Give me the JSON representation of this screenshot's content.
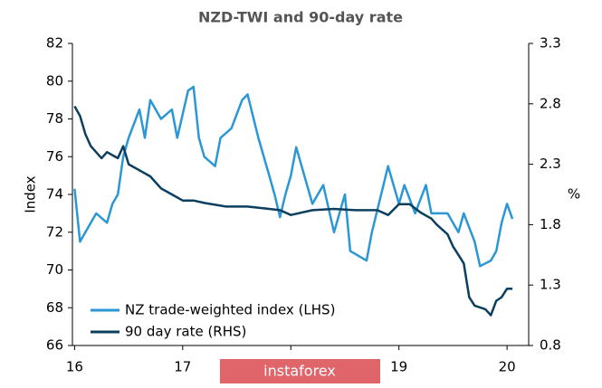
{
  "chart_data": {
    "type": "line",
    "title": "NZD-TWI and 90-day rate",
    "y_label": "Index",
    "y2_label": "%",
    "xlim": [
      15.98,
      20.2
    ],
    "xticks": [
      16,
      17,
      18,
      19,
      20
    ],
    "ylim": [
      66,
      82
    ],
    "yticks": [
      66,
      68,
      70,
      72,
      74,
      76,
      78,
      80,
      82
    ],
    "y2lim": [
      0.8,
      3.3
    ],
    "y2ticks": [
      0.8,
      1.3,
      1.8,
      2.3,
      2.8,
      3.3
    ],
    "legend": "lower left",
    "watermark": "instaforex",
    "series": [
      {
        "name": "NZ trade-weighted index (LHS)",
        "color": "#2b97d4",
        "x": [
          16.0,
          16.05,
          16.1,
          16.2,
          16.3,
          16.35,
          16.4,
          16.45,
          16.5,
          16.6,
          16.65,
          16.7,
          16.8,
          16.9,
          16.95,
          17.05,
          17.1,
          17.15,
          17.2,
          17.3,
          17.35,
          17.45,
          17.55,
          17.6,
          17.7,
          17.8,
          17.85,
          17.9,
          17.95,
          18.0,
          18.05,
          18.1,
          18.2,
          18.3,
          18.4,
          18.45,
          18.5,
          18.55,
          18.7,
          18.75,
          18.9,
          19.0,
          19.05,
          19.15,
          19.25,
          19.3,
          19.45,
          19.55,
          19.6,
          19.7,
          19.75,
          19.85,
          19.9,
          19.95,
          20.0,
          20.05
        ],
        "values": [
          74.3,
          71.5,
          72,
          73,
          72.5,
          73.5,
          74,
          76,
          77,
          78.5,
          77,
          79,
          78,
          78.5,
          77,
          79.5,
          79.7,
          77,
          76,
          75.5,
          77,
          77.5,
          79,
          79.3,
          77,
          75,
          74,
          72.8,
          74,
          75,
          76.5,
          75.5,
          73.5,
          74.5,
          72,
          73,
          74,
          71,
          70.5,
          72,
          75.5,
          73.5,
          74.5,
          73,
          74.5,
          73,
          73,
          72,
          73,
          71.5,
          70.2,
          70.5,
          71,
          72.5,
          73.5,
          72.7
        ]
      },
      {
        "name": "90 day rate (RHS)",
        "color": "#0b3f5f",
        "axis": "y2",
        "x": [
          16.0,
          16.05,
          16.1,
          16.15,
          16.25,
          16.3,
          16.4,
          16.45,
          16.5,
          16.6,
          16.7,
          16.8,
          16.9,
          17.0,
          17.1,
          17.2,
          17.4,
          17.6,
          17.8,
          17.9,
          18.0,
          18.2,
          18.4,
          18.6,
          18.8,
          18.9,
          19.0,
          19.1,
          19.2,
          19.3,
          19.35,
          19.45,
          19.5,
          19.55,
          19.6,
          19.65,
          19.7,
          19.8,
          19.85,
          19.9,
          19.95,
          20.0,
          20.05
        ],
        "values": [
          2.78,
          2.7,
          2.55,
          2.45,
          2.35,
          2.4,
          2.35,
          2.45,
          2.3,
          2.25,
          2.2,
          2.1,
          2.05,
          2.0,
          2.0,
          1.98,
          1.95,
          1.95,
          1.93,
          1.92,
          1.88,
          1.92,
          1.93,
          1.92,
          1.92,
          1.88,
          1.97,
          1.97,
          1.9,
          1.85,
          1.8,
          1.72,
          1.62,
          1.55,
          1.48,
          1.2,
          1.13,
          1.1,
          1.05,
          1.17,
          1.2,
          1.27,
          1.27
        ]
      }
    ]
  }
}
